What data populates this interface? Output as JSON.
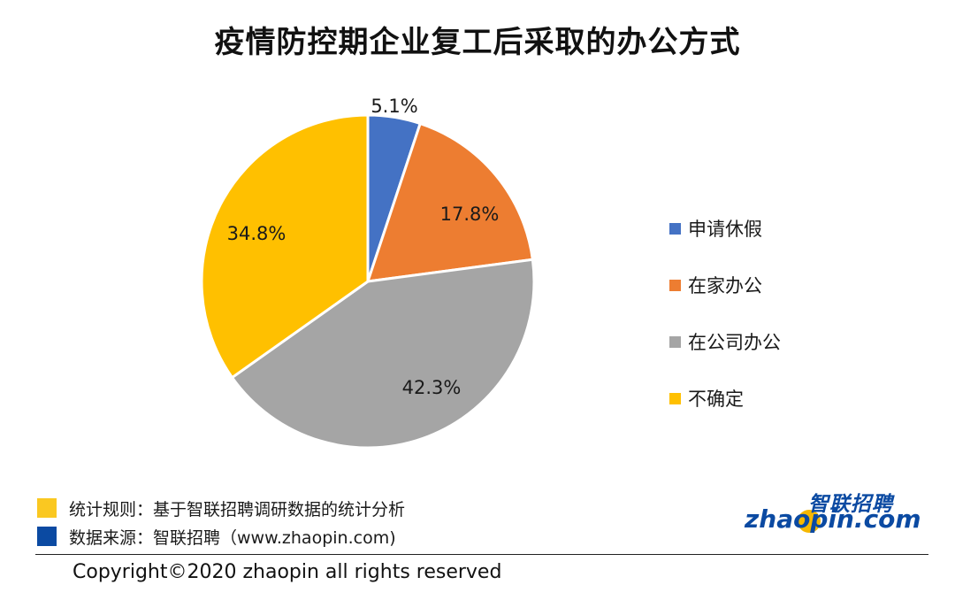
{
  "title": "疫情防控期企业复工后采取的办公方式",
  "chart_data": {
    "type": "pie",
    "title": "疫情防控期企业复工后采取的办公方式",
    "slices": [
      {
        "label": "申请休假",
        "value": 5.1,
        "display": "5.1%",
        "color": "#4472c4"
      },
      {
        "label": "在家办公",
        "value": 17.8,
        "display": "17.8%",
        "color": "#ed7d31"
      },
      {
        "label": "在公司办公",
        "value": 42.3,
        "display": "42.3%",
        "color": "#a5a5a5"
      },
      {
        "label": "不确定",
        "value": 34.8,
        "display": "34.8%",
        "color": "#ffc000"
      }
    ],
    "legend_position": "right"
  },
  "notes": [
    {
      "text": "统计规则：基于智联招聘调研数据的统计分析",
      "color": "#fac821"
    },
    {
      "text": "数据来源：智联招聘（www.zhaopin.com)",
      "color": "#0b4aa2"
    }
  ],
  "copyright": "Copyright©2020 zhaopin all rights reserved",
  "logo": {
    "top": "智联招聘",
    "bottom": "zhaopin.com"
  }
}
